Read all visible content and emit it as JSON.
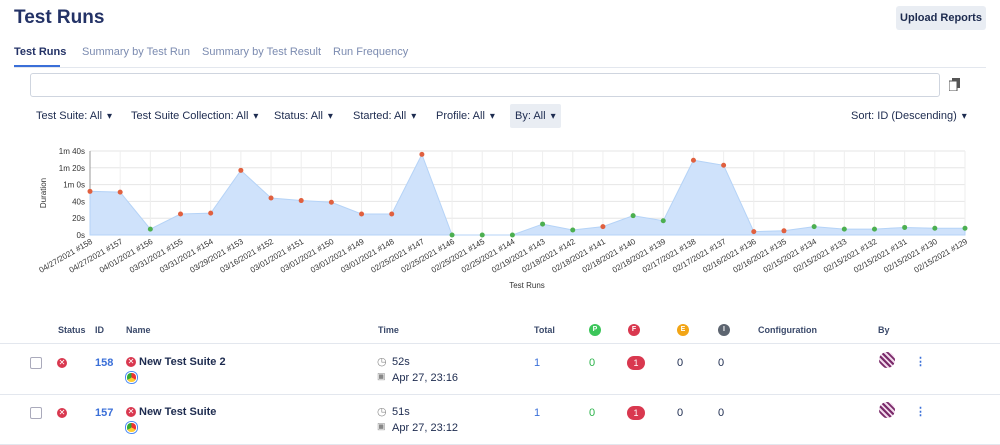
{
  "header": {
    "title": "Test Runs",
    "upload_button": "Upload Reports"
  },
  "tabs": [
    "Test Runs",
    "Summary by Test Run",
    "Summary by Test Result",
    "Run Frequency"
  ],
  "filters": [
    "Test Suite: All",
    "Test Suite Collection: All",
    "Status: All",
    "Started: All",
    "Profile: All",
    "By: All"
  ],
  "sort": {
    "label": "Sort:",
    "value": "ID (Descending)"
  },
  "chart_data": {
    "type": "area",
    "xlabel": "Test Runs",
    "ylabel": "Duration",
    "categories": [
      "04/27/2021 #158",
      "04/27/2021 #157",
      "04/01/2021 #156",
      "03/31/2021 #155",
      "03/31/2021 #154",
      "03/29/2021 #153",
      "03/16/2021 #152",
      "03/01/2021 #151",
      "03/01/2021 #150",
      "03/01/2021 #149",
      "03/01/2021 #148",
      "02/25/2021 #147",
      "02/25/2021 #146",
      "02/25/2021 #145",
      "02/25/2021 #144",
      "02/19/2021 #143",
      "02/18/2021 #142",
      "02/18/2021 #141",
      "02/18/2021 #140",
      "02/18/2021 #139",
      "02/17/2021 #138",
      "02/17/2021 #137",
      "02/16/2021 #136",
      "02/16/2021 #135",
      "02/15/2021 #134",
      "02/15/2021 #133",
      "02/15/2021 #132",
      "02/15/2021 #131",
      "02/15/2021 #130",
      "02/15/2021 #129"
    ],
    "values": [
      52,
      51,
      7,
      25,
      26,
      77,
      44,
      41,
      39,
      25,
      25,
      96,
      0,
      0,
      0,
      13,
      6,
      10,
      23,
      17,
      89,
      83,
      4,
      5,
      10,
      7,
      7,
      9,
      8,
      8
    ],
    "point_colors": [
      "#e0603f",
      "#e0603f",
      "#4caf50",
      "#e0603f",
      "#e0603f",
      "#e0603f",
      "#e0603f",
      "#e0603f",
      "#e0603f",
      "#e0603f",
      "#e0603f",
      "#e0603f",
      "#4caf50",
      "#4caf50",
      "#4caf50",
      "#4caf50",
      "#4caf50",
      "#e0603f",
      "#4caf50",
      "#4caf50",
      "#e0603f",
      "#e0603f",
      "#e0603f",
      "#e0603f",
      "#4caf50",
      "#4caf50",
      "#4caf50",
      "#4caf50",
      "#4caf50",
      "#4caf50"
    ],
    "color": "#cfe2fb",
    "ylim": [
      0,
      100
    ],
    "yticks": [
      {
        "value": 0,
        "label": "0s"
      },
      {
        "value": 20,
        "label": "20s"
      },
      {
        "value": 40,
        "label": "40s"
      },
      {
        "value": 60,
        "label": "1m 0s"
      },
      {
        "value": 80,
        "label": "1m 20s"
      },
      {
        "value": 100,
        "label": "1m 40s"
      }
    ],
    "grid": true
  },
  "table": {
    "columns": [
      "Status",
      "ID",
      "Name",
      "Time",
      "Total",
      "P",
      "F",
      "E",
      "I",
      "Configuration",
      "By"
    ],
    "rows": [
      {
        "id": "158",
        "name": "New Test Suite 2",
        "duration": "52s",
        "started": "Apr 27, 23:16",
        "total": "1",
        "passed": "0",
        "failed": "1",
        "error": "0",
        "incomplete": "0"
      },
      {
        "id": "157",
        "name": "New Test Suite",
        "duration": "51s",
        "started": "Apr 27, 23:12",
        "total": "1",
        "passed": "0",
        "failed": "1",
        "error": "0",
        "incomplete": "0"
      }
    ]
  }
}
